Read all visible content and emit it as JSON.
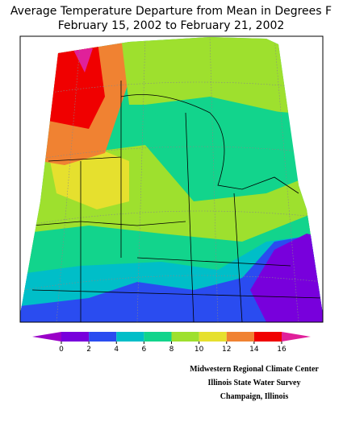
{
  "title": [
    "Average Temperature Departure from Mean in Degrees F",
    "February 15, 2002 to February 21, 2002"
  ],
  "legend": {
    "ticks": [
      0,
      2,
      4,
      6,
      8,
      10,
      12,
      14,
      16
    ],
    "colors": [
      "#9a00c8",
      "#7800dc",
      "#2a4cf0",
      "#00bec8",
      "#12d48c",
      "#9ee02e",
      "#e6e02e",
      "#f08232",
      "#f00000",
      "#e0209a"
    ]
  },
  "credits": [
    "Midwestern Regional Climate Center",
    "Illinois State Water Survey",
    "Champaign, Illinois"
  ]
}
